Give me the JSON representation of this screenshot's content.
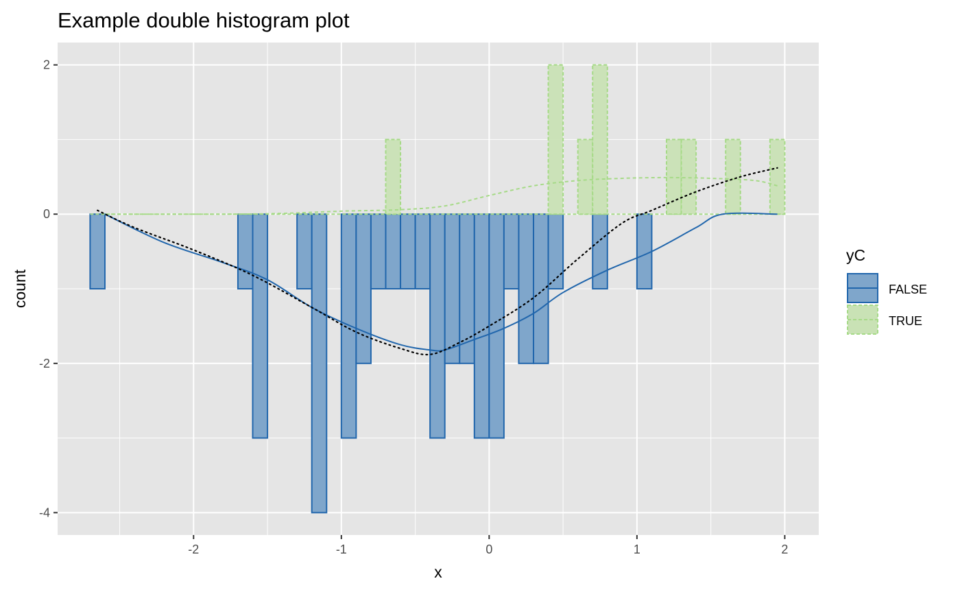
{
  "chart_data": {
    "type": "bar",
    "title": "Example double histogram plot",
    "xlabel": "x",
    "ylabel": "count",
    "xlim": [
      -2.92,
      2.23
    ],
    "ylim": [
      -4.3,
      2.3
    ],
    "x_ticks": [
      -2,
      -1,
      0,
      1,
      2
    ],
    "x_tick_labels": [
      "-2",
      "-1",
      "0",
      "1",
      "2"
    ],
    "y_ticks": [
      -4,
      -2,
      0,
      2
    ],
    "y_tick_labels": [
      "-4",
      "-2",
      "0",
      "2"
    ],
    "grid": true,
    "bin_width": 0.1,
    "legend": {
      "title": "yC",
      "position": "right",
      "entries": [
        "FALSE",
        "TRUE"
      ]
    },
    "colors": {
      "panel": "#e5e5e5",
      "grid": "#ffffff",
      "false_fill": "#7fa6cb",
      "false_line": "#2166ac",
      "true_fill": "#c9e2b5",
      "true_line": "#a6da87",
      "overall": "#000000"
    },
    "series": [
      {
        "name": "FALSE",
        "bins": [
          {
            "x": -2.65,
            "count": -1
          },
          {
            "x": -1.65,
            "count": -1
          },
          {
            "x": -1.55,
            "count": -3
          },
          {
            "x": -1.25,
            "count": -1
          },
          {
            "x": -1.15,
            "count": -4
          },
          {
            "x": -0.95,
            "count": -3
          },
          {
            "x": -0.85,
            "count": -2
          },
          {
            "x": -0.75,
            "count": -1
          },
          {
            "x": -0.65,
            "count": -1
          },
          {
            "x": -0.55,
            "count": -1
          },
          {
            "x": -0.45,
            "count": -1
          },
          {
            "x": -0.35,
            "count": -3
          },
          {
            "x": -0.25,
            "count": -2
          },
          {
            "x": -0.15,
            "count": -2
          },
          {
            "x": -0.05,
            "count": -3
          },
          {
            "x": 0.05,
            "count": -3
          },
          {
            "x": 0.15,
            "count": -1
          },
          {
            "x": 0.25,
            "count": -2
          },
          {
            "x": 0.35,
            "count": -2
          },
          {
            "x": 0.45,
            "count": -1
          },
          {
            "x": 0.75,
            "count": -1
          },
          {
            "x": 1.05,
            "count": -1
          }
        ],
        "density": {
          "x": [
            -2.6,
            -2.2,
            -1.8,
            -1.5,
            -1.2,
            -0.9,
            -0.6,
            -0.4,
            -0.3,
            -0.1,
            0.1,
            0.3,
            0.5,
            0.8,
            1.1,
            1.4,
            1.58,
            1.95
          ],
          "y": [
            0,
            -0.38,
            -0.65,
            -0.88,
            -1.25,
            -1.53,
            -1.75,
            -1.82,
            -1.82,
            -1.68,
            -1.53,
            -1.33,
            -1.05,
            -0.75,
            -0.5,
            -0.18,
            0,
            0
          ]
        }
      },
      {
        "name": "TRUE",
        "bins": [
          {
            "x": -0.65,
            "count": 1
          },
          {
            "x": 0.45,
            "count": 2
          },
          {
            "x": 0.65,
            "count": 1
          },
          {
            "x": 0.75,
            "count": 2
          },
          {
            "x": 1.25,
            "count": 1
          },
          {
            "x": 1.35,
            "count": 1
          },
          {
            "x": 1.65,
            "count": 1
          },
          {
            "x": 1.95,
            "count": 1
          }
        ],
        "density": {
          "x": [
            -2.6,
            -1.8,
            -1.4,
            -1.0,
            -0.6,
            -0.3,
            0.0,
            0.3,
            0.6,
            0.9,
            1.2,
            1.5,
            1.8,
            1.95
          ],
          "y": [
            0,
            0,
            0.01,
            0.04,
            0.06,
            0.11,
            0.25,
            0.38,
            0.45,
            0.48,
            0.49,
            0.48,
            0.45,
            0.38
          ]
        }
      },
      {
        "name": "overall",
        "density": {
          "x": [
            -2.65,
            -2.4,
            -2.0,
            -1.6,
            -1.2,
            -0.9,
            -0.6,
            -0.4,
            -0.2,
            0.0,
            0.3,
            0.6,
            0.9,
            1.1,
            1.4,
            1.7,
            1.95
          ],
          "y": [
            0.05,
            -0.18,
            -0.48,
            -0.82,
            -1.25,
            -1.58,
            -1.8,
            -1.88,
            -1.72,
            -1.5,
            -1.12,
            -0.6,
            -0.12,
            0.05,
            0.3,
            0.5,
            0.62
          ]
        }
      }
    ]
  }
}
